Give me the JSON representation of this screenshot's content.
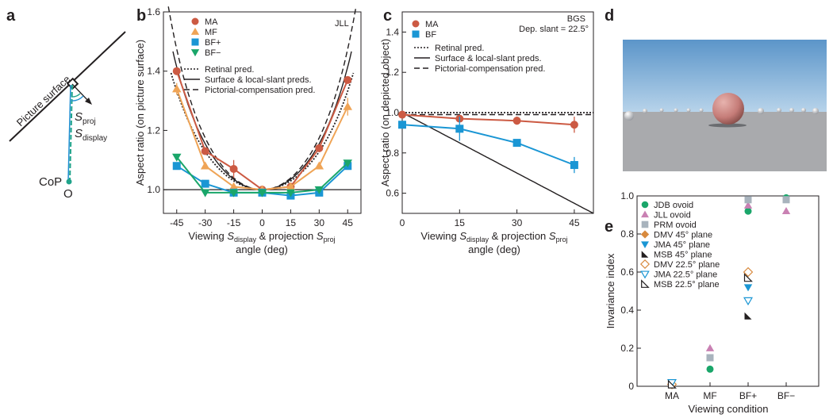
{
  "panel_letters": [
    "a",
    "b",
    "c",
    "d",
    "e"
  ],
  "diagram_a": {
    "surface_label": "Picture surface",
    "s_proj_label": "S",
    "s_proj_sub": "proj",
    "s_display_label": "S",
    "s_display_sub": "display",
    "cop_label": "CoP",
    "o_label": "O",
    "teal": "#1fa38a",
    "blue": "#1f8fd1"
  },
  "render_d": {
    "sky_top": "#5b95c9",
    "sky_bottom": "#b7d3ea",
    "ground": "#a9aaad",
    "sphere": "#c57c78"
  },
  "colors": {
    "MA": "#cc5a43",
    "MF": "#efa456",
    "BF+": "#1a96d4",
    "BF-": "#1aa66a",
    "BF": "#1a96d4",
    "JDB": "#1aa66a",
    "JLL": "#c981b3",
    "PRM": "#a8b3bd",
    "DMV": "#d88a3e",
    "JMA": "#1a96d4",
    "MSB": "#231f20"
  },
  "chart_data": [
    {
      "panel": "b",
      "type": "line",
      "title": "JLL",
      "xlabel": "Viewing S_display & projection S_proj angle (deg)",
      "xlabel_parts": [
        "Viewing ",
        "S",
        "display",
        " & projection ",
        "S",
        "proj"
      ],
      "xlabel_line2": "angle (deg)",
      "ylabel": "Aspect ratio (on picture surface)",
      "xlim": [
        -52,
        52
      ],
      "ylim": [
        0.92,
        1.6
      ],
      "xticks": [
        -45,
        -30,
        -15,
        0,
        15,
        30,
        45
      ],
      "yticks": [
        1.0,
        1.2,
        1.4,
        1.6
      ],
      "ytick_labels": [
        "1.0",
        "1.2",
        "1.4",
        "1.6"
      ],
      "x": [
        -45,
        -30,
        -15,
        0,
        15,
        30,
        45
      ],
      "series": [
        {
          "name": "MA",
          "marker": "circle",
          "values": [
            1.4,
            1.13,
            1.07,
            1.0,
            1.01,
            1.14,
            1.37
          ],
          "err": [
            0.0,
            0.01,
            0.03,
            0.0,
            0.01,
            0.0,
            0.0
          ]
        },
        {
          "name": "MF",
          "marker": "triangle-up",
          "values": [
            1.34,
            1.08,
            1.01,
            1.0,
            1.01,
            1.08,
            1.28
          ],
          "err": [
            0.02,
            0.01,
            0.0,
            0.0,
            0.0,
            0.0,
            0.03
          ]
        },
        {
          "name": "BF+",
          "marker": "square",
          "values": [
            1.08,
            1.02,
            0.99,
            0.99,
            0.98,
            0.99,
            1.08
          ],
          "err": [
            0.0,
            0.0,
            0.0,
            0.0,
            0.0,
            0.0,
            0.0
          ]
        },
        {
          "name": "BF−",
          "marker": "triangle-down",
          "values": [
            1.11,
            0.99,
            0.99,
            0.99,
            0.99,
            1.0,
            1.09
          ],
          "err": [
            0.0,
            0.0,
            0.0,
            0.0,
            0.0,
            0.0,
            0.0
          ]
        }
      ],
      "legend_lines": [
        "Retinal pred.",
        "Surface & local-slant preds.",
        "Pictorial-compensation pred."
      ]
    },
    {
      "panel": "c",
      "type": "line",
      "title": "BGS",
      "subtitle": "Dep. slant = 22.5°",
      "xlabel": "Viewing S_display & projection S_proj angle (deg)",
      "xlabel_parts": [
        "Viewing ",
        "S",
        "display",
        " & projection ",
        "S",
        "proj"
      ],
      "xlabel_line2": "angle (deg)",
      "ylabel": "Aspect ratio (on depicted object)",
      "xlim": [
        0,
        50
      ],
      "ylim": [
        0.5,
        1.5
      ],
      "xticks": [
        0,
        15,
        30,
        45
      ],
      "yticks": [
        0.6,
        0.8,
        1.0,
        1.2,
        1.4
      ],
      "ytick_labels": [
        "0.6",
        "0.8",
        "1.0",
        "1.2",
        "1.4"
      ],
      "x": [
        0,
        15,
        30,
        45
      ],
      "series": [
        {
          "name": "MA",
          "marker": "circle",
          "values": [
            0.99,
            0.97,
            0.96,
            0.94
          ],
          "err": [
            0.0,
            0.0,
            0.02,
            0.04
          ]
        },
        {
          "name": "BF",
          "marker": "square",
          "values": [
            0.94,
            0.92,
            0.85,
            0.74
          ],
          "err": [
            0.0,
            0.06,
            0.0,
            0.04
          ]
        }
      ],
      "legend_lines": [
        "Retinal pred.",
        "Surface & local-slant preds.",
        "Pictorial-compensation pred."
      ]
    },
    {
      "panel": "e",
      "type": "scatter",
      "xlabel": "Viewing condition",
      "ylabel": "Invariance index",
      "categories": [
        "MA",
        "MF",
        "BF+",
        "BF−"
      ],
      "ylim": [
        0,
        1.0
      ],
      "yticks": [
        0,
        0.2,
        0.4,
        0.6,
        0.8,
        1.0
      ],
      "ytick_labels": [
        "0",
        "0.2",
        "0.4",
        "0.6",
        "0.8",
        "1.0"
      ],
      "series": [
        {
          "name": "JDB ovoid",
          "color_key": "JDB",
          "marker": "circle",
          "values": [
            null,
            0.09,
            0.92,
            0.99
          ]
        },
        {
          "name": "JLL ovoid",
          "color_key": "JLL",
          "marker": "triangle-up",
          "values": [
            null,
            0.2,
            0.95,
            0.92
          ]
        },
        {
          "name": "PRM ovoid",
          "color_key": "PRM",
          "marker": "square",
          "values": [
            null,
            0.15,
            0.98,
            0.98
          ]
        },
        {
          "name": "DMV 45° plane",
          "color_key": "DMV",
          "marker": "diamond",
          "values": [
            0.01,
            null,
            0.6,
            null
          ]
        },
        {
          "name": "JMA 45° plane",
          "color_key": "JMA",
          "marker": "triangle-down",
          "values": [
            0.02,
            null,
            0.52,
            null
          ]
        },
        {
          "name": "MSB 45° plane",
          "color_key": "MSB",
          "marker": "corner-triangle",
          "values": [
            0.01,
            null,
            0.37,
            null
          ]
        },
        {
          "name": "DMV 22.5° plane",
          "color_key": "DMV",
          "marker": "diamond-open",
          "values": [
            0.01,
            null,
            0.6,
            null
          ]
        },
        {
          "name": "JMA 22.5° plane",
          "color_key": "JMA",
          "marker": "triangle-down-open",
          "values": [
            0.02,
            null,
            0.45,
            null
          ]
        },
        {
          "name": "MSB 22.5° plane",
          "color_key": "MSB",
          "marker": "corner-triangle-open",
          "values": [
            0.01,
            null,
            0.57,
            null
          ]
        }
      ]
    }
  ]
}
